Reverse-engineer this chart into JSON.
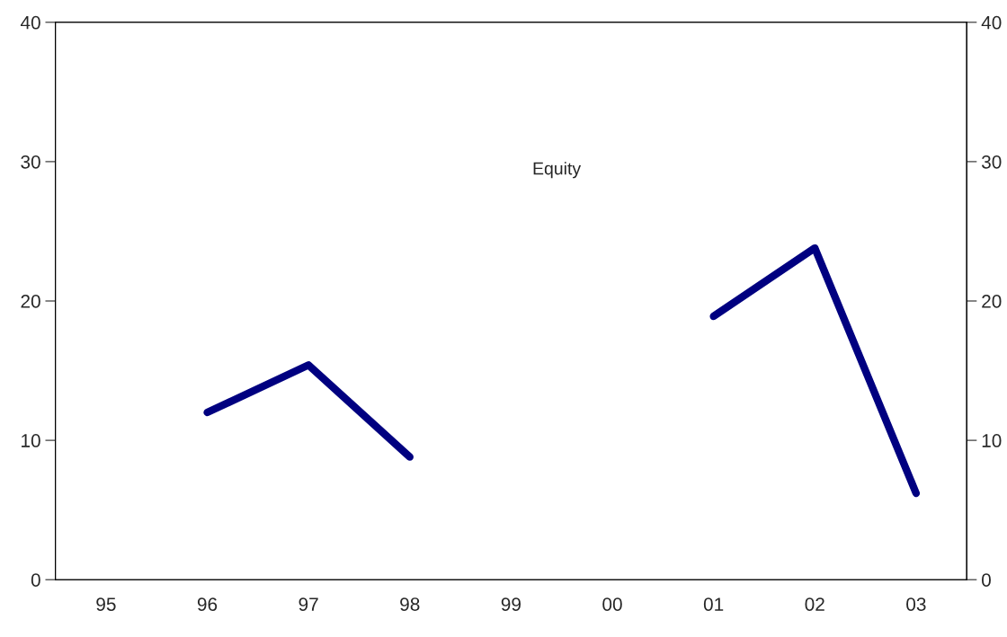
{
  "chart_data": {
    "type": "line",
    "categories": [
      "95",
      "96",
      "97",
      "98",
      "99",
      "00",
      "01",
      "02",
      "03"
    ],
    "series": [
      {
        "name": "Equity",
        "color": "#000080",
        "values": [
          null,
          12.0,
          15.4,
          8.8,
          null,
          null,
          18.9,
          23.8,
          6.2
        ]
      }
    ],
    "ylim": [
      0,
      40
    ],
    "yticks": [
      0,
      10,
      20,
      30,
      40
    ],
    "y2lim": [
      0,
      40
    ],
    "y2ticks": [
      0,
      10,
      20,
      30,
      40
    ],
    "grid": false,
    "marker": "none",
    "line_style": "solid"
  }
}
